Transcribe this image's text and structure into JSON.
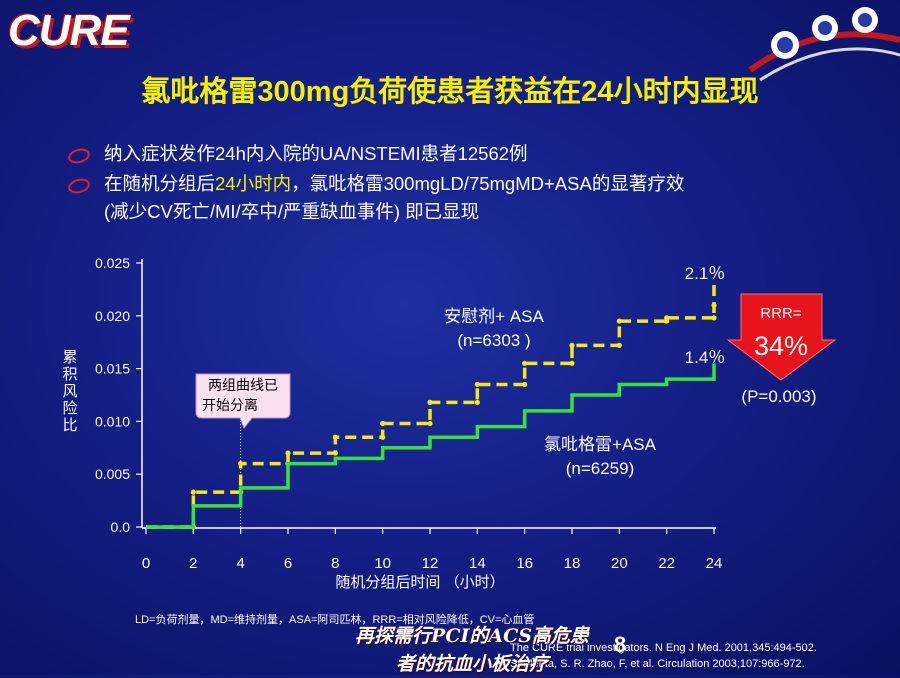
{
  "logo": "CURE",
  "title": "氯吡格雷300mg负荷使患者获益在24小时内显现",
  "bullets": [
    {
      "text": "纳入症状发作24h内入院的UA/NSTEMI患者12562例"
    },
    {
      "pre": "在随机分组后",
      "hl": "24小时内",
      "post": "，氯吡格雷300mgLD/75mgMD+ASA的显著疗效",
      "line2": "(减少CV死亡/MI/卒中/严重缺血事件) 即已显现"
    }
  ],
  "chart_data": {
    "type": "line",
    "ylabel": "累积风险比",
    "xlabel": "随机分组后时间 （小时）",
    "x_ticks": [
      "0",
      "2",
      "4",
      "6",
      "8",
      "10",
      "12",
      "14",
      "16",
      "18",
      "20",
      "22",
      "24"
    ],
    "y_ticks": [
      "0.0",
      "0.005",
      "0.010",
      "0.015",
      "0.020",
      "0.025"
    ],
    "xlim": [
      0,
      24
    ],
    "ylim": [
      0,
      0.025
    ],
    "series": [
      {
        "name_line1": "安慰剂+ ASA",
        "name_line2": "(n=6303 )",
        "color": "#f4e81a",
        "style": "dashed",
        "x": [
          0,
          2,
          4,
          6,
          8,
          10,
          12,
          14,
          16,
          18,
          20,
          22,
          24
        ],
        "y": [
          0.0,
          0.0033,
          0.006,
          0.007,
          0.0085,
          0.0098,
          0.0118,
          0.0135,
          0.0155,
          0.0172,
          0.0195,
          0.0198,
          0.021
        ],
        "end_value": 0.023,
        "end_label": "2.1％"
      },
      {
        "name_line1": "氯吡格雷+ASA",
        "name_line2": "(n=6259)",
        "color": "#33e23a",
        "style": "solid",
        "x": [
          0,
          2,
          4,
          6,
          8,
          10,
          12,
          14,
          16,
          18,
          20,
          22,
          24
        ],
        "y": [
          0.0,
          0.002,
          0.0037,
          0.006,
          0.0065,
          0.0075,
          0.0085,
          0.0095,
          0.011,
          0.0125,
          0.0135,
          0.014,
          0.014
        ],
        "end_value": 0.0155,
        "end_label": "1.4％"
      }
    ],
    "annotation_note": "两组曲线已开始分离",
    "annotation_x": 4,
    "rrr_label": "RRR=",
    "rrr_value": "34%",
    "p_value": "(P=0.003)"
  },
  "footnote": "LD=负荷剂量，MD=维持剂量，ASA=阿司匹林，RRR=相对风险降低，CV=心血管",
  "refs": [
    "The CURE trial investigators. N Eng J Med. 2001,345:494-502.",
    "S. Mehta, S. R. Zhao, F, et al. Circulation 2003;107:966-972."
  ],
  "bottom_text_line1": "再探需行PCI的ACS高危患",
  "bottom_text_line2": "者的抗血小板治疗",
  "page_number": "8"
}
